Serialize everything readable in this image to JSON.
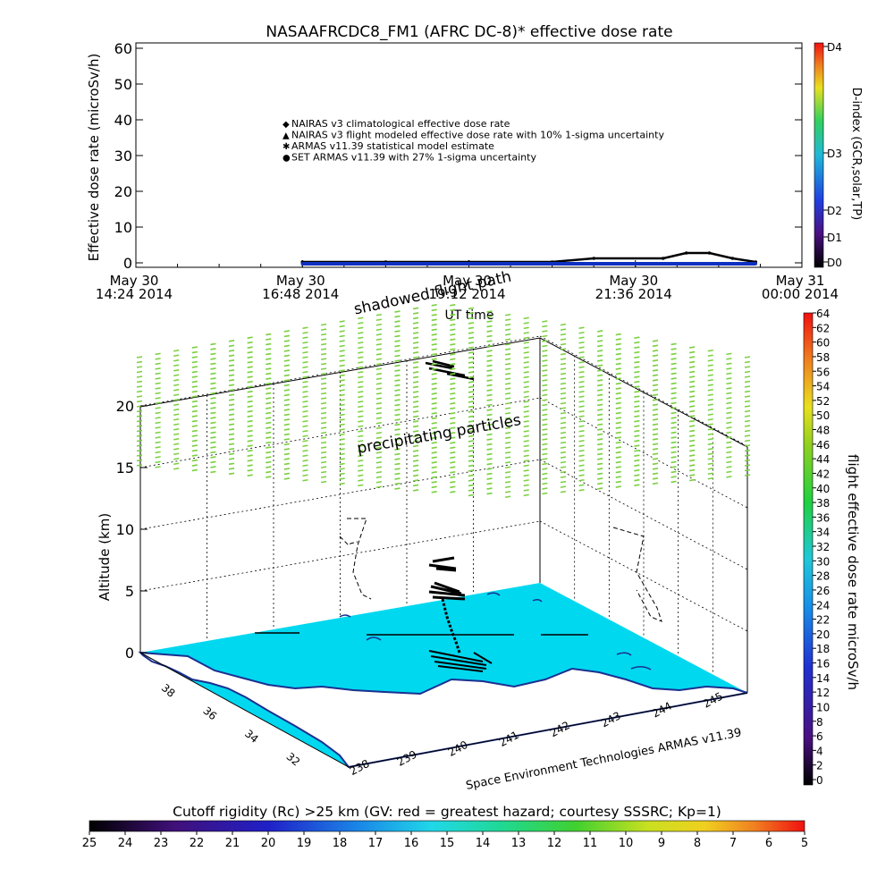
{
  "title": "NASAAFRCDC8_FM1 (AFRC DC-8)* effective dose rate",
  "top_plot": {
    "ylabel": "Effective dose rate (microSv/h)",
    "xlabel": "UT time",
    "ylim": [
      0,
      60
    ],
    "yticks": [
      "0",
      "10",
      "20",
      "30",
      "40",
      "50",
      "60"
    ],
    "xticks": [
      {
        "l1": "May 30",
        "l2": "14:24 2014"
      },
      {
        "l1": "May 30",
        "l2": "16:48 2014"
      },
      {
        "l1": "May 30",
        "l2": "19:12 2014"
      },
      {
        "l1": "May 30",
        "l2": "21:36 2014"
      },
      {
        "l1": "May 31",
        "l2": "00:00 2014"
      }
    ],
    "legend": [
      {
        "symbol": "◆",
        "color": "#e03020",
        "text": "NAIRAS v3 climatological effective dose rate"
      },
      {
        "symbol": "▲",
        "color": "#000000",
        "text": "NAIRAS v3 flight modeled effective dose rate with 10% 1-sigma uncertainty"
      },
      {
        "symbol": "✱",
        "color": "#5ad030",
        "text": "ARMAS v11.39 statistical model estimate"
      },
      {
        "symbol": "●",
        "color": "#1030c0",
        "text": "SET ARMAS v11.39 with 27% 1-sigma uncertainty"
      }
    ]
  },
  "dindex": {
    "label": "D-index (GCR,solar,TP)",
    "ticks": [
      "D0",
      "D1",
      "D2",
      "D3",
      "D4"
    ]
  },
  "flight_colorbar": {
    "label": "flight effective dose rate microSv/h",
    "ticks": [
      "0",
      "2",
      "4",
      "6",
      "8",
      "10",
      "12",
      "14",
      "16",
      "18",
      "20",
      "22",
      "24",
      "26",
      "28",
      "30",
      "32",
      "34",
      "36",
      "38",
      "40",
      "42",
      "44",
      "46",
      "48",
      "50",
      "52",
      "54",
      "56",
      "58",
      "60",
      "62",
      "64"
    ]
  },
  "rigidity_colorbar": {
    "label": "Cutoff rigidity (Rc) >25 km (GV: red = greatest hazard; courtesy SSSRC; Kp=1)",
    "ticks": [
      "25",
      "24",
      "23",
      "22",
      "21",
      "20",
      "19",
      "18",
      "17",
      "16",
      "15",
      "14",
      "13",
      "12",
      "11",
      "10",
      "9",
      "8",
      "7",
      "6",
      "5"
    ]
  },
  "plot3d": {
    "zlabel": "Altitude (km)",
    "zticks": [
      "0",
      "5",
      "10",
      "15",
      "20"
    ],
    "lat_ticks": [
      "38",
      "36",
      "34",
      "32"
    ],
    "lon_ticks": [
      "239",
      "240",
      "241",
      "242",
      "243",
      "244",
      "245"
    ],
    "extra_lon_tick": "238",
    "credit": "Space Environment Technologies ARMAS v11.39",
    "annotation_shadow": "shadowed flight path",
    "annotation_precip": "precipitating particles"
  },
  "chart_data": {
    "type": "line",
    "title": "NASAAFRCDC8_FM1 (AFRC DC-8)* effective dose rate",
    "xlabel": "UT time",
    "ylabel": "Effective dose rate (microSv/h)",
    "xlim": [
      "2014-05-30 14:24",
      "2014-05-31 00:00"
    ],
    "ylim": [
      0,
      60
    ],
    "x": [
      "2014-05-30 16:48",
      "2014-05-30 18:00",
      "2014-05-30 19:12",
      "2014-05-30 20:24",
      "2014-05-30 21:00",
      "2014-05-30 22:00",
      "2014-05-30 22:20",
      "2014-05-30 22:40",
      "2014-05-30 23:00",
      "2014-05-30 23:20"
    ],
    "series": [
      {
        "name": "NAIRAS v3 flight modeled effective dose rate with 10% 1-sigma uncertainty",
        "values": [
          0,
          0,
          0,
          0,
          1,
          1,
          2.5,
          2.5,
          1,
          0
        ]
      },
      {
        "name": "SET ARMAS v11.39 with 27% 1-sigma uncertainty",
        "values": [
          0,
          0,
          0,
          0,
          0,
          0,
          0,
          0,
          0,
          0
        ]
      }
    ],
    "grid": false,
    "legend_position": "center-left"
  }
}
